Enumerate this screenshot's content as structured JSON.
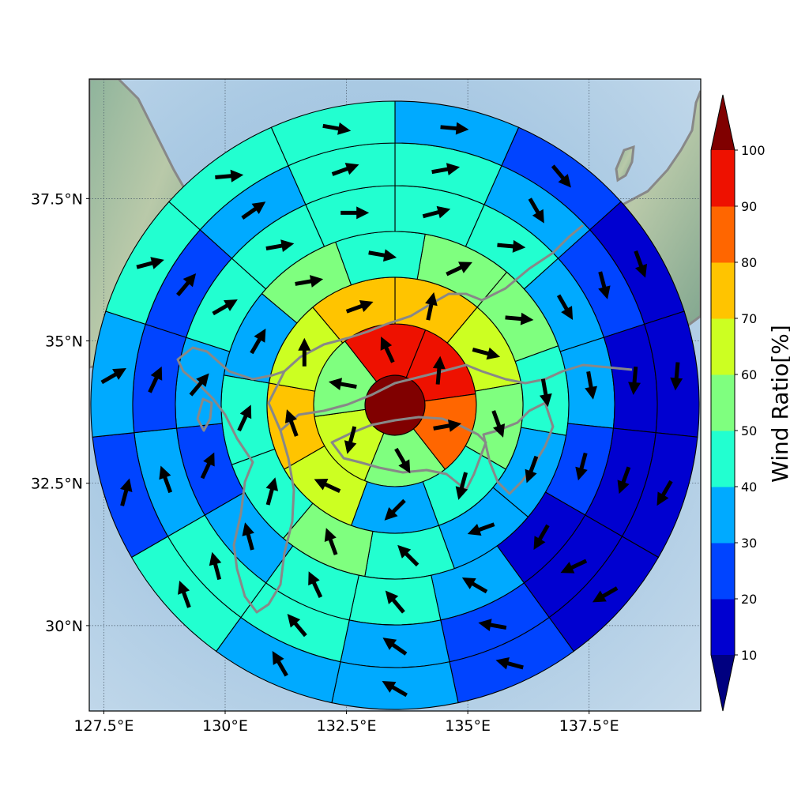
{
  "chart_data": {
    "type": "polar_grid_wind_map",
    "map": {
      "lon_range": [
        127.2,
        139.8
      ],
      "lat_range": [
        28.5,
        39.6
      ],
      "lon_ticks": [
        127.5,
        130,
        132.5,
        135,
        137.5
      ],
      "lat_ticks": [
        30,
        32.5,
        35,
        37.5
      ],
      "lon_tick_labels": [
        "127.5°E",
        "130°E",
        "132.5°E",
        "135°E",
        "137.5°E"
      ],
      "lat_tick_labels": [
        "30°N",
        "32.5°N",
        "35°N",
        "37.5°N"
      ],
      "grid": true,
      "center": [
        133.55,
        34.15
      ],
      "coastline_color": "#888888"
    },
    "colorbar": {
      "title": "Wind Ratio[%]",
      "levels": [
        10,
        20,
        30,
        40,
        50,
        60,
        70,
        80,
        90,
        100
      ],
      "colors": [
        "#0000D0",
        "#0044FF",
        "#00AAFF",
        "#22FFD0",
        "#7FFF7F",
        "#CCFF22",
        "#FFC400",
        "#FF6600",
        "#EE1100"
      ],
      "under_color": "#000080",
      "over_color": "#800000",
      "extend": "both"
    },
    "rings": [
      {
        "sectors": [
          {
            "value": 105,
            "dir": null
          }
        ]
      },
      {
        "sectors": [
          {
            "value": 95,
            "dir": 5
          },
          {
            "value": 85,
            "dir": 80
          },
          {
            "value": 55,
            "dir": 150
          },
          {
            "value": 65,
            "dir": 195
          },
          {
            "value": 55,
            "dir": 280
          },
          {
            "value": 95,
            "dir": 335
          }
        ]
      },
      {
        "sectors": [
          {
            "value": 75,
            "dir": 12
          },
          {
            "value": 65,
            "dir": 105
          },
          {
            "value": 55,
            "dir": 160
          },
          {
            "value": 45,
            "dir": 195
          },
          {
            "value": 35,
            "dir": 225
          },
          {
            "value": 65,
            "dir": 295
          },
          {
            "value": 75,
            "dir": 340
          },
          {
            "value": 65,
            "dir": 0
          },
          {
            "value": 75,
            "dir": 70
          }
        ]
      },
      {
        "sectors": [
          {
            "value": 55,
            "dir": 65
          },
          {
            "value": 55,
            "dir": 95
          },
          {
            "value": 45,
            "dir": 170
          },
          {
            "value": 35,
            "dir": 200
          },
          {
            "value": 35,
            "dir": 250
          },
          {
            "value": 45,
            "dir": 315
          },
          {
            "value": 55,
            "dir": 340
          },
          {
            "value": 45,
            "dir": 15
          },
          {
            "value": 45,
            "dir": 25
          },
          {
            "value": 35,
            "dir": 30
          },
          {
            "value": 55,
            "dir": 80
          },
          {
            "value": 45,
            "dir": 100
          }
        ]
      },
      {
        "sectors": [
          {
            "value": 45,
            "dir": 75
          },
          {
            "value": 45,
            "dir": 95
          },
          {
            "value": 35,
            "dir": 150
          },
          {
            "value": 35,
            "dir": 170
          },
          {
            "value": 20,
            "dir": 195
          },
          {
            "value": 15,
            "dir": 210
          },
          {
            "value": 35,
            "dir": 300
          },
          {
            "value": 45,
            "dir": 320
          },
          {
            "value": 45,
            "dir": 335
          },
          {
            "value": 35,
            "dir": 345
          },
          {
            "value": 25,
            "dir": 25
          },
          {
            "value": 35,
            "dir": 40
          },
          {
            "value": 45,
            "dir": 60
          },
          {
            "value": 45,
            "dir": 80
          },
          {
            "value": 45,
            "dir": 90
          }
        ]
      },
      {
        "sectors": [
          {
            "value": 45,
            "dir": 80
          },
          {
            "value": 35,
            "dir": 150
          },
          {
            "value": 25,
            "dir": 165
          },
          {
            "value": 15,
            "dir": 185
          },
          {
            "value": 15,
            "dir": 200
          },
          {
            "value": 15,
            "dir": 245
          },
          {
            "value": 25,
            "dir": 280
          },
          {
            "value": 35,
            "dir": 305
          },
          {
            "value": 45,
            "dir": 320
          },
          {
            "value": 45,
            "dir": 345
          },
          {
            "value": 35,
            "dir": 340
          },
          {
            "value": 25,
            "dir": 25
          },
          {
            "value": 25,
            "dir": 40
          },
          {
            "value": 35,
            "dir": 55
          },
          {
            "value": 45,
            "dir": 70
          }
        ]
      },
      {
        "sectors": [
          {
            "value": 35,
            "dir": 95
          },
          {
            "value": 25,
            "dir": 140
          },
          {
            "value": 15,
            "dir": 160
          },
          {
            "value": 15,
            "dir": 185
          },
          {
            "value": 15,
            "dir": 210
          },
          {
            "value": 15,
            "dir": 240
          },
          {
            "value": 25,
            "dir": 285
          },
          {
            "value": 35,
            "dir": 300
          },
          {
            "value": 35,
            "dir": 330
          },
          {
            "value": 45,
            "dir": 340
          },
          {
            "value": 25,
            "dir": 15
          },
          {
            "value": 35,
            "dir": 60
          },
          {
            "value": 45,
            "dir": 75
          },
          {
            "value": 45,
            "dir": 85
          },
          {
            "value": 45,
            "dir": 100
          }
        ]
      }
    ]
  }
}
